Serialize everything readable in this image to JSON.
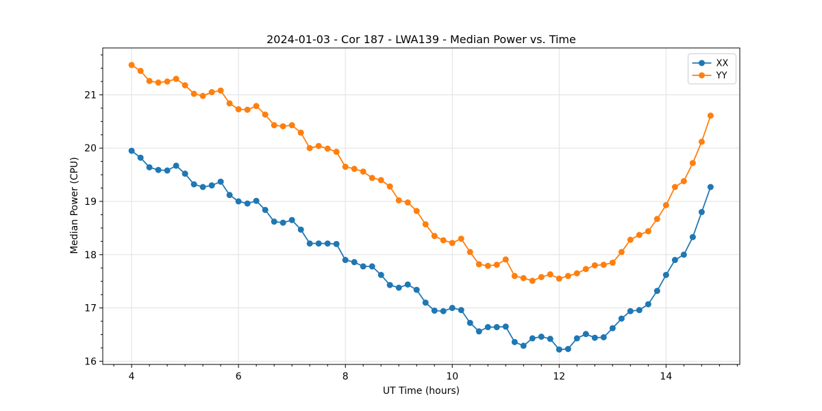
{
  "chart_data": {
    "type": "line",
    "title": "2024-01-03 - Cor 187 - LWA139 - Median Power vs. Time",
    "xlabel": "UT Time (hours)",
    "ylabel": "Median Power (CPU)",
    "xlim": [
      3.46,
      15.38
    ],
    "ylim": [
      15.94,
      21.88
    ],
    "grid": true,
    "legend_position": "upper right",
    "marker": "circle",
    "x_major_ticks": [
      4,
      6,
      8,
      10,
      12,
      14
    ],
    "x_tick_labels": [
      "4",
      "6",
      "8",
      "10",
      "12",
      "14"
    ],
    "x_minor_step": 0.33333,
    "y_major_ticks": [
      16,
      17,
      18,
      19,
      20,
      21
    ],
    "y_tick_labels": [
      "16",
      "17",
      "18",
      "19",
      "20",
      "21"
    ],
    "y_minor_step": 0.25,
    "x": [
      4,
      4.167,
      4.333,
      4.5,
      4.667,
      4.833,
      5,
      5.167,
      5.333,
      5.5,
      5.667,
      5.833,
      6,
      6.167,
      6.333,
      6.5,
      6.667,
      6.833,
      7,
      7.167,
      7.333,
      7.5,
      7.667,
      7.833,
      8,
      8.167,
      8.333,
      8.5,
      8.667,
      8.833,
      9,
      9.167,
      9.333,
      9.5,
      9.667,
      9.833,
      10,
      10.167,
      10.333,
      10.5,
      10.667,
      10.833,
      11,
      11.167,
      11.333,
      11.5,
      11.667,
      11.833,
      12,
      12.167,
      12.333,
      12.5,
      12.667,
      12.833,
      13,
      13.167,
      13.333,
      13.5,
      13.667,
      13.833,
      14,
      14.167,
      14.333,
      14.5,
      14.667,
      14.833
    ],
    "series": [
      {
        "name": "XX",
        "color": "#1f77b4",
        "values": [
          19.95,
          19.82,
          19.64,
          19.59,
          19.58,
          19.67,
          19.52,
          19.32,
          19.27,
          19.3,
          19.37,
          19.12,
          19.0,
          18.96,
          19.01,
          18.84,
          18.62,
          18.6,
          18.65,
          18.47,
          18.21,
          18.21,
          18.21,
          18.2,
          17.9,
          17.86,
          17.78,
          17.78,
          17.62,
          17.43,
          17.38,
          17.44,
          17.34,
          17.1,
          16.95,
          16.94,
          17.0,
          16.96,
          16.72,
          16.56,
          16.64,
          16.64,
          16.65,
          16.36,
          16.29,
          16.43,
          16.46,
          16.42,
          16.22,
          16.23,
          16.43,
          16.51,
          16.44,
          16.45,
          16.62,
          16.8,
          16.94,
          16.96,
          17.07,
          17.32,
          17.62,
          17.9,
          18.0,
          18.33,
          18.8,
          19.27
        ]
      },
      {
        "name": "YY",
        "color": "#ff7f0e",
        "values": [
          21.56,
          21.45,
          21.26,
          21.23,
          21.25,
          21.3,
          21.18,
          21.02,
          20.98,
          21.05,
          21.08,
          20.84,
          20.73,
          20.72,
          20.79,
          20.63,
          20.43,
          20.41,
          20.43,
          20.29,
          20.0,
          20.04,
          19.99,
          19.93,
          19.65,
          19.61,
          19.56,
          19.44,
          19.4,
          19.28,
          19.02,
          18.98,
          18.82,
          18.57,
          18.35,
          18.27,
          18.22,
          18.3,
          18.05,
          17.82,
          17.79,
          17.81,
          17.91,
          17.6,
          17.56,
          17.51,
          17.58,
          17.63,
          17.55,
          17.6,
          17.65,
          17.73,
          17.8,
          17.81,
          17.85,
          18.05,
          18.28,
          18.37,
          18.44,
          18.67,
          18.93,
          19.27,
          19.38,
          19.72,
          20.12,
          20.61
        ]
      }
    ]
  },
  "style": {
    "grid_color": "#e0e0e0",
    "spine_color": "#000000",
    "tick_color": "#000000",
    "legend_border_color": "#cccccc",
    "legend_background": "#ffffff",
    "plot_background": "#ffffff",
    "line_width": 1.8,
    "marker_radius": 4.5
  }
}
